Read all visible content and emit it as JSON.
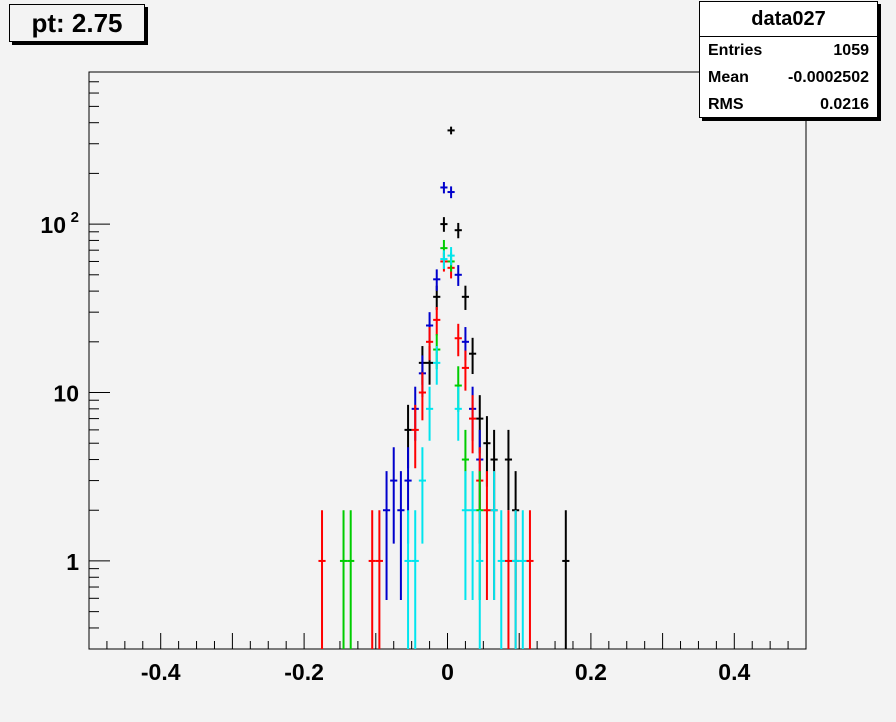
{
  "title": "pt: 2.75",
  "stats": {
    "name": "data027",
    "rows": [
      {
        "label": "Entries",
        "value": "1059"
      },
      {
        "label": "Mean",
        "value": "-0.0002502"
      },
      {
        "label": "RMS",
        "value": "0.0216"
      }
    ]
  },
  "chart_data": {
    "type": "scatter",
    "title": "pt: 2.75",
    "xlabel": "",
    "ylabel": "",
    "xlim": [
      -0.5,
      0.5
    ],
    "ylim": [
      0.3,
      800
    ],
    "yscale": "log",
    "grid": false,
    "x_ticks": [
      {
        "v": -0.4,
        "label": "-0.4"
      },
      {
        "v": -0.2,
        "label": "-0.2"
      },
      {
        "v": 0,
        "label": "0"
      },
      {
        "v": 0.2,
        "label": "0.2"
      },
      {
        "v": 0.4,
        "label": "0.4"
      }
    ],
    "y_ticks": [
      {
        "v": 1,
        "label": "1"
      },
      {
        "v": 10,
        "label": "10"
      },
      {
        "v": 100,
        "label": "10",
        "sup": "2"
      }
    ],
    "bin_half_width": 0.005,
    "series": [
      {
        "color": "#000000",
        "points": [
          [
            -0.025,
            15
          ],
          [
            -0.015,
            37
          ],
          [
            -0.005,
            100
          ],
          [
            0.005,
            360
          ],
          [
            0.015,
            92
          ],
          [
            0.025,
            37
          ],
          [
            0.035,
            17
          ],
          [
            0.045,
            7
          ],
          [
            0.055,
            5
          ],
          [
            0.065,
            4
          ],
          [
            0.085,
            4
          ],
          [
            0.095,
            2
          ],
          [
            0.165,
            1
          ],
          [
            -0.055,
            6
          ],
          [
            -0.035,
            15
          ]
        ]
      },
      {
        "color": "#0000cc",
        "points": [
          [
            -0.065,
            2
          ],
          [
            -0.055,
            3
          ],
          [
            -0.045,
            8
          ],
          [
            -0.035,
            13
          ],
          [
            -0.025,
            25
          ],
          [
            -0.015,
            47
          ],
          [
            -0.005,
            165
          ],
          [
            0.005,
            155
          ],
          [
            0.015,
            50
          ],
          [
            0.025,
            20
          ],
          [
            0.035,
            8
          ],
          [
            0.045,
            4
          ],
          [
            -0.085,
            2
          ],
          [
            -0.075,
            3
          ]
        ]
      },
      {
        "color": "#ff0000",
        "points": [
          [
            -0.175,
            1
          ],
          [
            -0.105,
            1
          ],
          [
            -0.095,
            1
          ],
          [
            -0.045,
            6
          ],
          [
            -0.035,
            10
          ],
          [
            -0.025,
            20
          ],
          [
            -0.015,
            27
          ],
          [
            -0.005,
            60
          ],
          [
            0.005,
            55
          ],
          [
            0.015,
            21
          ],
          [
            0.025,
            14
          ],
          [
            0.035,
            7
          ],
          [
            0.045,
            3
          ],
          [
            0.055,
            2
          ],
          [
            0.065,
            2
          ],
          [
            0.085,
            1
          ],
          [
            0.095,
            1
          ],
          [
            0.115,
            1
          ]
        ]
      },
      {
        "color": "#00cc00",
        "points": [
          [
            -0.015,
            18
          ],
          [
            -0.005,
            72
          ],
          [
            0.005,
            60
          ],
          [
            0.015,
            11
          ],
          [
            0.025,
            4
          ],
          [
            0.045,
            2
          ],
          [
            -0.145,
            1
          ],
          [
            -0.135,
            1
          ]
        ]
      },
      {
        "color": "#00e5ee",
        "points": [
          [
            -0.055,
            1
          ],
          [
            -0.045,
            1
          ],
          [
            -0.035,
            3
          ],
          [
            -0.025,
            8
          ],
          [
            -0.015,
            15
          ],
          [
            -0.005,
            62
          ],
          [
            0.005,
            65
          ],
          [
            0.015,
            8
          ],
          [
            0.025,
            2
          ],
          [
            0.035,
            2
          ],
          [
            0.045,
            1
          ],
          [
            0.065,
            2
          ],
          [
            0.075,
            1
          ],
          [
            0.095,
            1
          ],
          [
            0.105,
            1
          ]
        ]
      }
    ]
  }
}
